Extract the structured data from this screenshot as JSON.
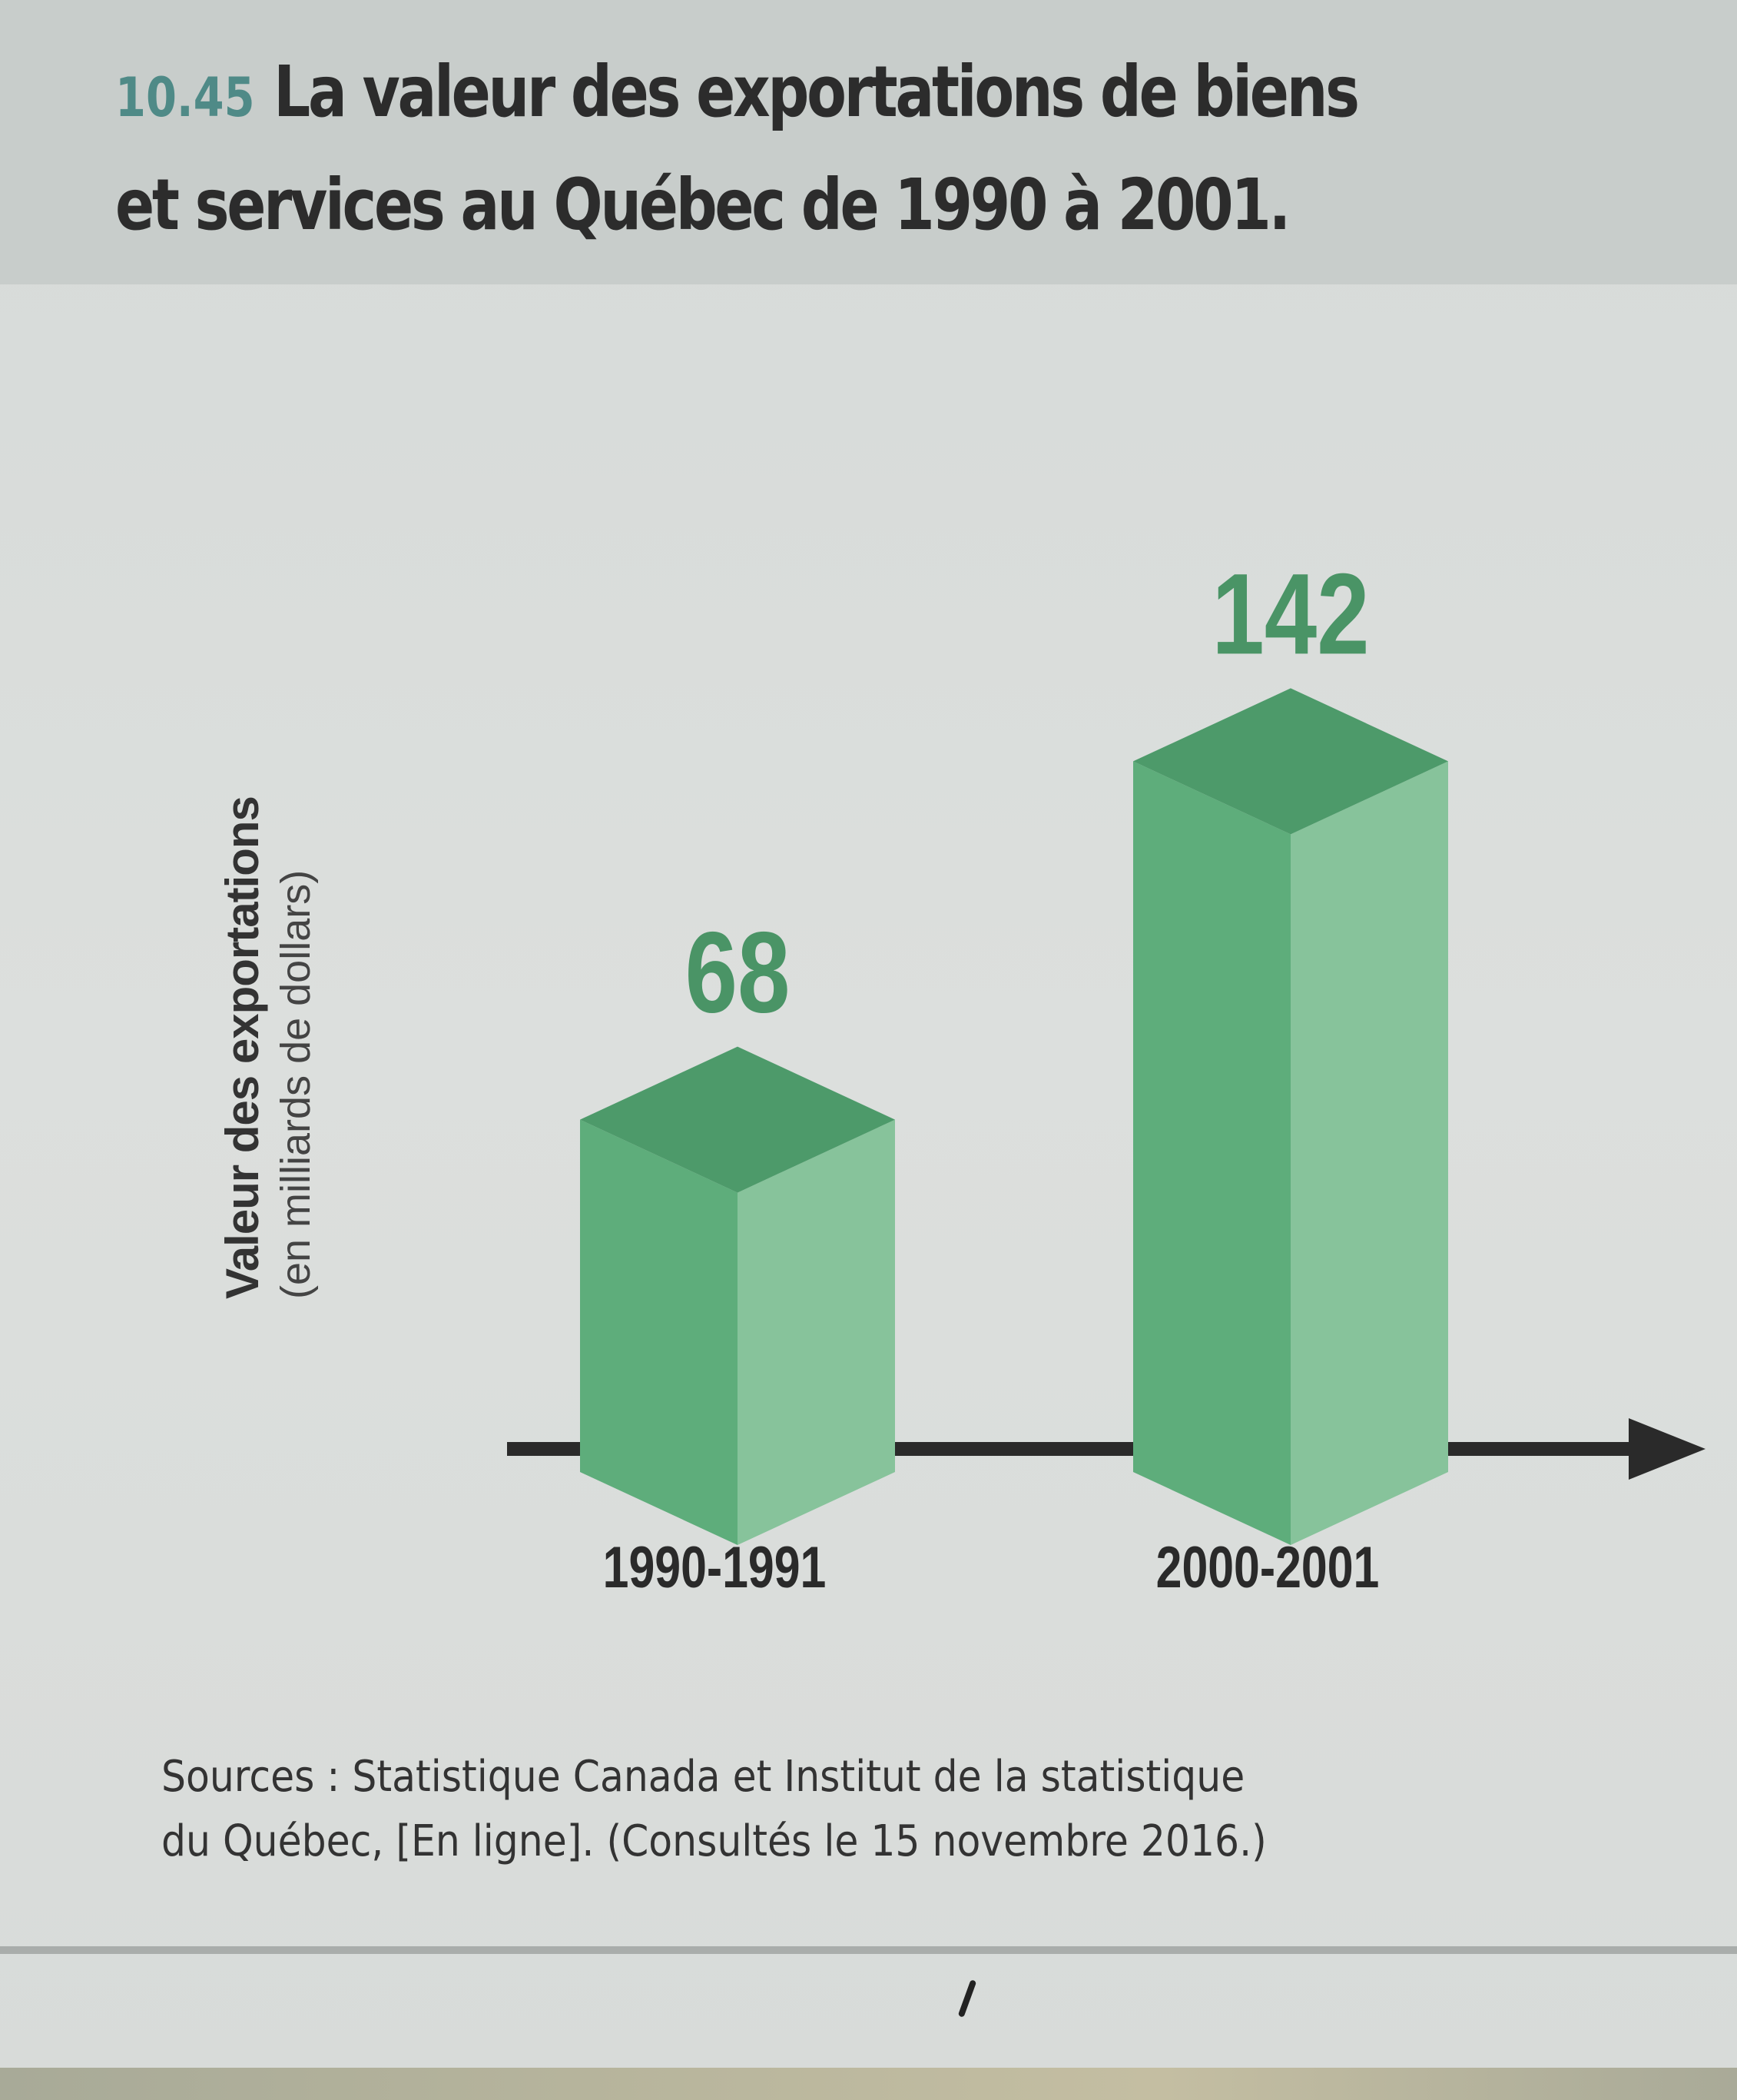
{
  "figure": {
    "number": "10.45",
    "title_line1": "La valeur des exportations de biens",
    "title_line2": "et services au Québec de 1990 à 2001."
  },
  "axis": {
    "ylabel_main": "Valeur des exportations",
    "ylabel_sub": "(en milliards de dollars)"
  },
  "source": {
    "line1": "Sources : Statistique Canada et Institut de la statistique",
    "line2": "du Québec, [En ligne]. (Consultés le 15 novembre 2016.)"
  },
  "colors": {
    "bar_top": "#4d9a6a",
    "bar_front": "#5ead7b",
    "bar_side": "#87c39b",
    "value_label": "#4a9466",
    "axis": "#2a2a2a",
    "fig_number": "#4f8a87"
  },
  "chart_data": {
    "type": "bar",
    "style": "3d-column",
    "title": "La valeur des exportations de biens et services au Québec de 1990 à 2001.",
    "categories": [
      "1990-1991",
      "2000-2001"
    ],
    "values": [
      68,
      142
    ],
    "value_labels": [
      "68",
      "142"
    ],
    "xlabel": "",
    "ylabel": "Valeur des exportations (en milliards de dollars)",
    "ylim": [
      0,
      160
    ],
    "grid": false,
    "legend": "none"
  }
}
